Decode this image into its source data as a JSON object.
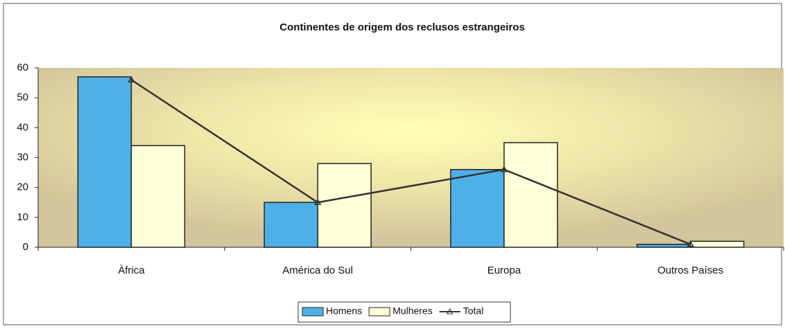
{
  "chart_data": {
    "type": "bar",
    "title": "Continentes de origem dos reclusos estrangeiros",
    "categories": [
      "Àfrica",
      "América do Sul",
      "Europa",
      "Outros Países"
    ],
    "series": [
      {
        "name": "Homens",
        "color": "#4fb0e8",
        "values": [
          57,
          15,
          26,
          1
        ]
      },
      {
        "name": "Mulheres",
        "color": "#ffffd8",
        "values": [
          34,
          28,
          35,
          2
        ]
      },
      {
        "name": "Total",
        "color": "#333333",
        "type": "line",
        "values": [
          56,
          15,
          26,
          1
        ]
      }
    ],
    "ylim": [
      0,
      60
    ],
    "yticks": [
      0,
      10,
      20,
      30,
      40,
      50,
      60
    ],
    "legend": "bottom"
  }
}
